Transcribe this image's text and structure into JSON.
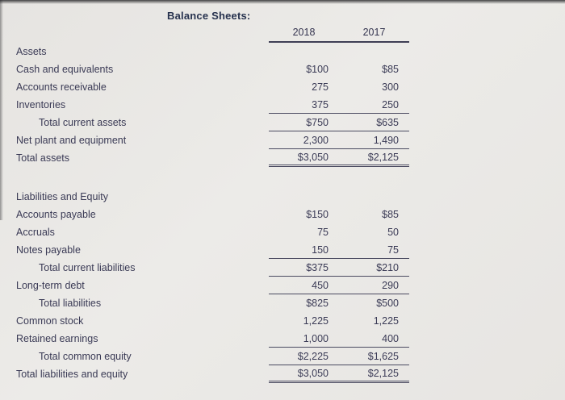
{
  "title": "Balance Sheets:",
  "columns": {
    "y2018": "2018",
    "y2017": "2017"
  },
  "rows": [
    {
      "label": "Assets",
      "v1": "",
      "v2": ""
    },
    {
      "label": "Cash and equivalents",
      "v1": "$100",
      "v2": "$85"
    },
    {
      "label": "Accounts receivable",
      "v1": "275",
      "v2": "300"
    },
    {
      "label": "Inventories",
      "v1": "375",
      "v2": "250"
    },
    {
      "label": "Total current assets",
      "v1": "$750",
      "v2": "$635"
    },
    {
      "label": "Net plant and equipment",
      "v1": "2,300",
      "v2": "1,490"
    },
    {
      "label": "Total assets",
      "v1": "$3,050",
      "v2": "$2,125"
    },
    {
      "label": "Liabilities and Equity",
      "v1": "",
      "v2": ""
    },
    {
      "label": "Accounts payable",
      "v1": "$150",
      "v2": "$85"
    },
    {
      "label": "Accruals",
      "v1": "75",
      "v2": "50"
    },
    {
      "label": "Notes payable",
      "v1": "150",
      "v2": "75"
    },
    {
      "label": "Total current liabilities",
      "v1": "$375",
      "v2": "$210"
    },
    {
      "label": "Long-term debt",
      "v1": "450",
      "v2": "290"
    },
    {
      "label": "Total liabilities",
      "v1": "$825",
      "v2": "$500"
    },
    {
      "label": "Common stock",
      "v1": "1,225",
      "v2": "1,225"
    },
    {
      "label": "Retained earnings",
      "v1": "1,000",
      "v2": "400"
    },
    {
      "label": "Total common equity",
      "v1": "$2,225",
      "v2": "$1,625"
    },
    {
      "label": "Total liabilities and equity",
      "v1": "$3,050",
      "v2": "$2,125"
    }
  ]
}
